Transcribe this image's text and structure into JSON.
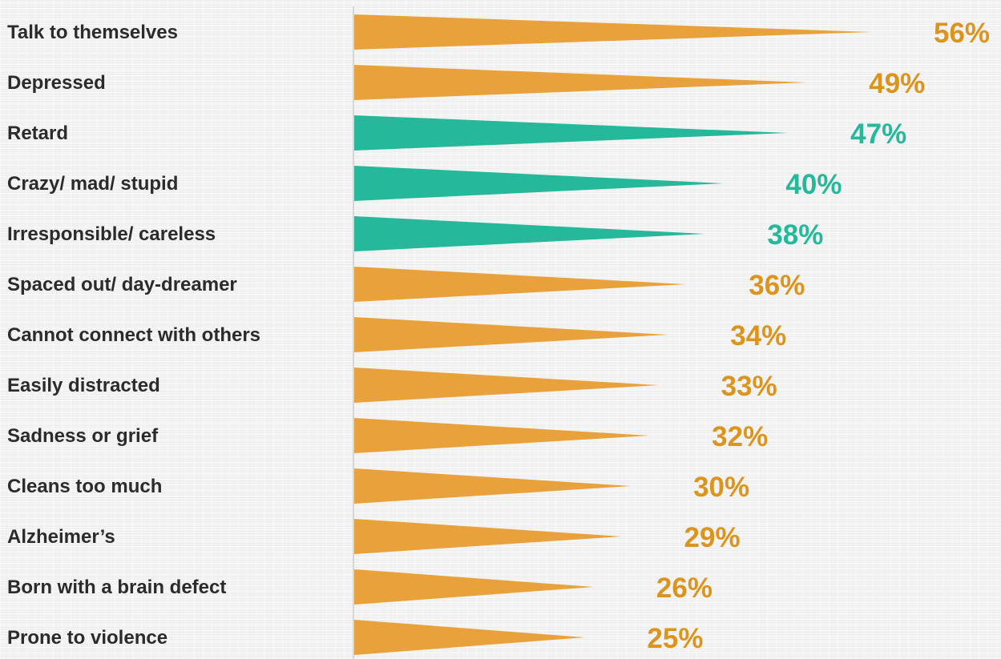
{
  "chart_data": {
    "type": "bar",
    "orientation": "horizontal",
    "categories": [
      "Talk to themselves",
      "Depressed",
      "Retard",
      "Crazy/ mad/ stupid",
      "Irresponsible/ careless",
      "Spaced out/ day-dreamer",
      "Cannot connect with others",
      "Easily distracted",
      "Sadness or grief",
      "Cleans too much",
      "Alzheimer’s",
      "Born with a brain defect",
      "Prone to violence"
    ],
    "values": [
      56,
      49,
      47,
      40,
      38,
      36,
      34,
      33,
      32,
      30,
      29,
      26,
      25
    ],
    "value_labels": [
      "56%",
      "49%",
      "47%",
      "40%",
      "38%",
      "36%",
      "34%",
      "33%",
      "32%",
      "30%",
      "29%",
      "26%",
      "25%"
    ],
    "bar_colors": [
      "#e9a23b",
      "#e9a23b",
      "#26b89a",
      "#26b89a",
      "#26b89a",
      "#e9a23b",
      "#e9a23b",
      "#e9a23b",
      "#e9a23b",
      "#e9a23b",
      "#e9a23b",
      "#e9a23b",
      "#e9a23b"
    ],
    "label_colors": [
      "#db951f",
      "#db951f",
      "#26b89a",
      "#26b89a",
      "#26b89a",
      "#db951f",
      "#db951f",
      "#db951f",
      "#db951f",
      "#db951f",
      "#db951f",
      "#db951f",
      "#db951f"
    ],
    "bar_shape": "tapered-spike",
    "xlim": [
      0,
      56
    ],
    "grid": false,
    "title": "",
    "xlabel": "",
    "ylabel": ""
  }
}
